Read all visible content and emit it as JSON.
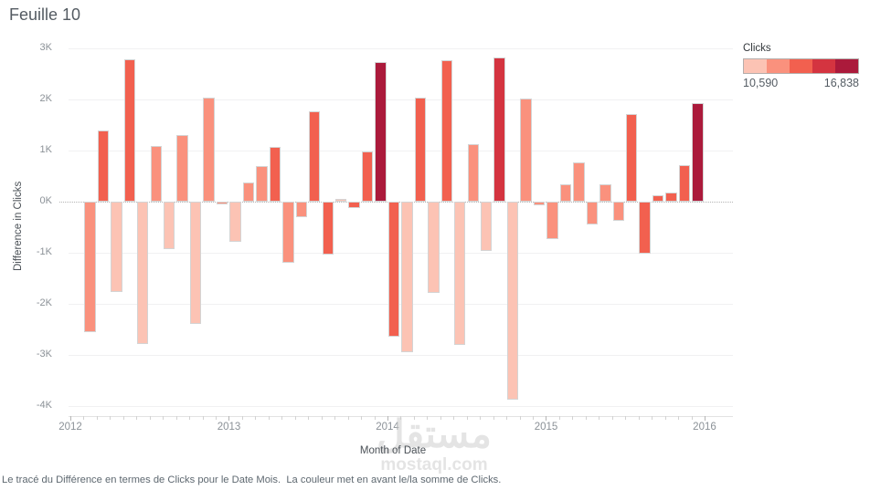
{
  "title": "Feuille 10",
  "caption": "Le tracé du Différence en termes de Clicks pour le Date Mois.  La couleur met en avant le/la somme de Clicks.",
  "watermark": {
    "arabic": "مستقل",
    "domain": "mostaql.com"
  },
  "legend": {
    "title": "Clicks",
    "min_label": "10,590",
    "max_label": "16,838"
  },
  "chart_data": {
    "type": "bar",
    "title": "Feuille 10",
    "xlabel": "Month of Date",
    "ylabel": "Difference in Clicks",
    "ylim": [
      -4000,
      3000
    ],
    "grid": true,
    "legend_position": "top-right",
    "palette": {
      "p1": "#fcc3b4",
      "p2": "#fa917d",
      "p3": "#f2604f",
      "p4": "#d43440",
      "p5": "#ab1a3b"
    },
    "yticks": [
      {
        "label": "3K",
        "value": 3
      },
      {
        "label": "2K",
        "value": 2
      },
      {
        "label": "1K",
        "value": 1
      },
      {
        "label": "0K",
        "value": 0
      },
      {
        "label": "-1K",
        "value": -1
      },
      {
        "label": "-2K",
        "value": -2
      },
      {
        "label": "-3K",
        "value": -3
      },
      {
        "label": "-4K",
        "value": -4
      }
    ],
    "x_years": [
      {
        "label": "2012",
        "month_index": 0
      },
      {
        "label": "2013",
        "month_index": 12
      },
      {
        "label": "2014",
        "month_index": 24
      },
      {
        "label": "2015",
        "month_index": 36
      },
      {
        "label": "2016",
        "month_index": 48
      }
    ],
    "bars": [
      {
        "month": "2012-02",
        "value": -2550,
        "color": "p2"
      },
      {
        "month": "2012-03",
        "value": 1400,
        "color": "p3"
      },
      {
        "month": "2012-04",
        "value": -1760,
        "color": "p1"
      },
      {
        "month": "2012-05",
        "value": 2780,
        "color": "p3"
      },
      {
        "month": "2012-06",
        "value": -2790,
        "color": "p1"
      },
      {
        "month": "2012-07",
        "value": 1090,
        "color": "p2"
      },
      {
        "month": "2012-08",
        "value": -920,
        "color": "p1"
      },
      {
        "month": "2012-09",
        "value": 1300,
        "color": "p2"
      },
      {
        "month": "2012-10",
        "value": -2400,
        "color": "p1"
      },
      {
        "month": "2012-11",
        "value": 2040,
        "color": "p2"
      },
      {
        "month": "2012-12",
        "value": -60,
        "color": "p2"
      },
      {
        "month": "2013-01",
        "value": -790,
        "color": "p1"
      },
      {
        "month": "2013-02",
        "value": 370,
        "color": "p2"
      },
      {
        "month": "2013-03",
        "value": 700,
        "color": "p2"
      },
      {
        "month": "2013-04",
        "value": 1070,
        "color": "p3"
      },
      {
        "month": "2013-05",
        "value": -1200,
        "color": "p2"
      },
      {
        "month": "2013-06",
        "value": -300,
        "color": "p2"
      },
      {
        "month": "2013-07",
        "value": 1760,
        "color": "p3"
      },
      {
        "month": "2013-08",
        "value": -1030,
        "color": "p3"
      },
      {
        "month": "2013-09",
        "value": 60,
        "color": "p1"
      },
      {
        "month": "2013-10",
        "value": -130,
        "color": "p3"
      },
      {
        "month": "2013-11",
        "value": 980,
        "color": "p3"
      },
      {
        "month": "2013-12",
        "value": 2740,
        "color": "p5"
      },
      {
        "month": "2014-01",
        "value": -2640,
        "color": "p3"
      },
      {
        "month": "2014-02",
        "value": -2940,
        "color": "p1"
      },
      {
        "month": "2014-03",
        "value": 2030,
        "color": "p3"
      },
      {
        "month": "2014-04",
        "value": -1780,
        "color": "p1"
      },
      {
        "month": "2014-05",
        "value": 2770,
        "color": "p3"
      },
      {
        "month": "2014-06",
        "value": -2810,
        "color": "p1"
      },
      {
        "month": "2014-07",
        "value": 1120,
        "color": "p2"
      },
      {
        "month": "2014-08",
        "value": -960,
        "color": "p1"
      },
      {
        "month": "2014-09",
        "value": 2830,
        "color": "p4"
      },
      {
        "month": "2014-10",
        "value": -3880,
        "color": "p1"
      },
      {
        "month": "2014-11",
        "value": 2020,
        "color": "p2"
      },
      {
        "month": "2014-12",
        "value": -70,
        "color": "p2"
      },
      {
        "month": "2015-01",
        "value": -730,
        "color": "p2"
      },
      {
        "month": "2015-02",
        "value": 340,
        "color": "p2"
      },
      {
        "month": "2015-03",
        "value": 760,
        "color": "p2"
      },
      {
        "month": "2015-04",
        "value": -440,
        "color": "p2"
      },
      {
        "month": "2015-05",
        "value": 340,
        "color": "p2"
      },
      {
        "month": "2015-06",
        "value": -370,
        "color": "p2"
      },
      {
        "month": "2015-07",
        "value": 1720,
        "color": "p3"
      },
      {
        "month": "2015-08",
        "value": -1020,
        "color": "p3"
      },
      {
        "month": "2015-09",
        "value": 120,
        "color": "p3"
      },
      {
        "month": "2015-10",
        "value": 170,
        "color": "p3"
      },
      {
        "month": "2015-11",
        "value": 720,
        "color": "p3"
      },
      {
        "month": "2015-12",
        "value": 1930,
        "color": "p5"
      }
    ]
  }
}
